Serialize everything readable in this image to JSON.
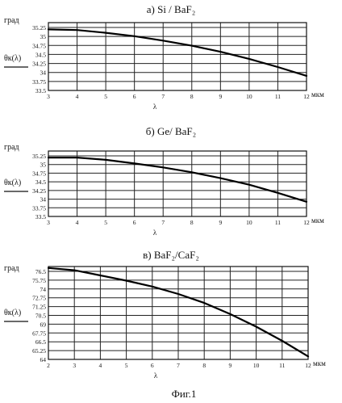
{
  "chart_data": [
    {
      "type": "line",
      "title": "а) Si / BaF₂",
      "ylabel_top": "град",
      "ylabel": "θк(λ)",
      "xlabel": "λ",
      "xunit": "мкм",
      "x_ticks": [
        "3",
        "4",
        "5",
        "6",
        "7",
        "8",
        "9",
        "10",
        "11",
        "12"
      ],
      "y_ticks": [
        "35.25",
        "35",
        "34.75",
        "34.5",
        "34.25",
        "34",
        "33.75",
        "33.5"
      ],
      "xlim": [
        3,
        12
      ],
      "ylim": [
        33.5,
        35.5
      ],
      "grid": true,
      "series": [
        {
          "x": [
            3,
            4,
            5,
            6,
            7,
            8,
            9,
            10,
            11,
            12
          ],
          "y": [
            35.3,
            35.28,
            35.2,
            35.1,
            34.97,
            34.82,
            34.64,
            34.43,
            34.19,
            33.93
          ]
        }
      ]
    },
    {
      "type": "line",
      "title": "б) Ge/ BaF₂",
      "ylabel_top": "град",
      "ylabel": "θк(λ)",
      "xlabel": "λ",
      "xunit": "мкм",
      "x_ticks": [
        "3",
        "4",
        "5",
        "6",
        "7",
        "8",
        "9",
        "10",
        "11",
        "12"
      ],
      "y_ticks": [
        "35.25",
        "35",
        "34.75",
        "34.5",
        "34.25",
        "34",
        "33.75",
        "33.5"
      ],
      "xlim": [
        3,
        12
      ],
      "ylim": [
        33.5,
        35.5
      ],
      "grid": true,
      "series": [
        {
          "x": [
            3,
            4,
            5,
            6,
            7,
            8,
            9,
            10,
            11,
            12
          ],
          "y": [
            35.3,
            35.3,
            35.23,
            35.12,
            35.0,
            34.85,
            34.67,
            34.47,
            34.22,
            33.95
          ]
        }
      ]
    },
    {
      "type": "line",
      "title": "в) BaF₂/CaF₂",
      "ylabel_top": "град",
      "ylabel": "θк(λ)",
      "xlabel": "λ",
      "xunit": "мкм",
      "x_ticks": [
        "2",
        "3",
        "4",
        "5",
        "6",
        "7",
        "8",
        "9",
        "10",
        "11",
        "12"
      ],
      "y_ticks": [
        "76.5",
        "75.75",
        "74",
        "72.75",
        "71.25",
        "70.5",
        "69",
        "67.75",
        "66.5",
        "65.25",
        "64"
      ],
      "xlim": [
        2,
        12
      ],
      "ylim": [
        64,
        76.5
      ],
      "grid": true,
      "series": [
        {
          "x": [
            2,
            3,
            4,
            5,
            6,
            7,
            8,
            9,
            10,
            11,
            12
          ],
          "y": [
            76.3,
            76.0,
            75.3,
            74.6,
            73.8,
            72.8,
            71.6,
            70.1,
            68.4,
            66.5,
            64.4
          ]
        }
      ]
    }
  ],
  "caption": "Фиг.1"
}
